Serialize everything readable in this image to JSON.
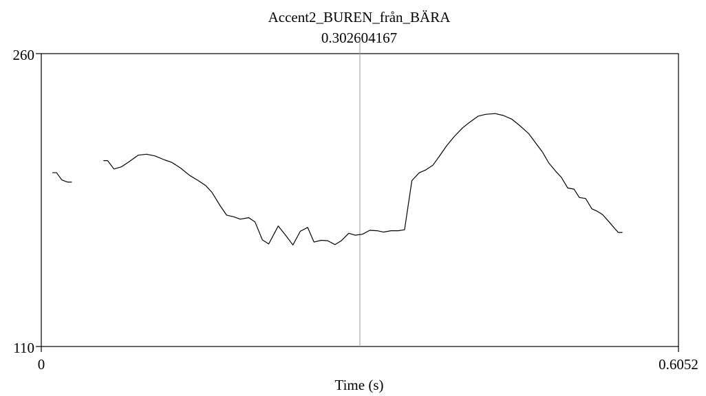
{
  "chart_data": {
    "type": "line",
    "title": "Accent2_BUREN_från_BÄRA",
    "cursor_label": "0.302604167",
    "cursor_x": 0.302604167,
    "xlabel": "Time (s)",
    "ylabel": "",
    "xlim": [
      0,
      0.6052
    ],
    "ylim": [
      110,
      260
    ],
    "x_tick_labels": [
      "0",
      "0.6052"
    ],
    "y_tick_labels": [
      "110",
      "260"
    ],
    "grid": false,
    "series": [
      {
        "segments": [
          [
            [
              0.0105,
              199.0
            ],
            [
              0.0145,
              199.0
            ],
            [
              0.0195,
              195.3
            ],
            [
              0.025,
              194.2
            ],
            [
              0.029,
              194.2
            ]
          ],
          [
            [
              0.059,
              205.2
            ],
            [
              0.063,
              205.2
            ],
            [
              0.069,
              200.9
            ],
            [
              0.076,
              202.0
            ],
            [
              0.083,
              204.5
            ],
            [
              0.092,
              208.0
            ],
            [
              0.1,
              208.5
            ],
            [
              0.108,
              207.6
            ],
            [
              0.117,
              205.6
            ],
            [
              0.124,
              204.3
            ],
            [
              0.132,
              201.5
            ],
            [
              0.141,
              197.6
            ],
            [
              0.149,
              195.0
            ],
            [
              0.156,
              192.5
            ],
            [
              0.162,
              189.0
            ],
            [
              0.17,
              182.0
            ],
            [
              0.176,
              177.3
            ],
            [
              0.183,
              176.4
            ],
            [
              0.189,
              175.2
            ],
            [
              0.197,
              176.0
            ],
            [
              0.203,
              173.8
            ],
            [
              0.21,
              164.6
            ],
            [
              0.216,
              162.5
            ],
            [
              0.225,
              171.7
            ],
            [
              0.232,
              167.0
            ],
            [
              0.239,
              162.0
            ],
            [
              0.246,
              169.0
            ],
            [
              0.253,
              171.0
            ],
            [
              0.259,
              163.5
            ],
            [
              0.266,
              164.4
            ],
            [
              0.272,
              164.2
            ],
            [
              0.279,
              162.2
            ],
            [
              0.285,
              164.2
            ],
            [
              0.292,
              168.0
            ],
            [
              0.298,
              167.0
            ],
            [
              0.305,
              167.5
            ],
            [
              0.312,
              169.5
            ],
            [
              0.319,
              169.3
            ],
            [
              0.325,
              168.6
            ],
            [
              0.332,
              169.3
            ],
            [
              0.339,
              169.3
            ],
            [
              0.345,
              169.8
            ],
            [
              0.352,
              195.0
            ],
            [
              0.359,
              199.0
            ],
            [
              0.365,
              200.4
            ],
            [
              0.372,
              202.9
            ],
            [
              0.378,
              207.4
            ],
            [
              0.385,
              212.8
            ],
            [
              0.392,
              217.4
            ],
            [
              0.4,
              221.9
            ],
            [
              0.407,
              224.9
            ],
            [
              0.415,
              228.0
            ],
            [
              0.422,
              228.9
            ],
            [
              0.431,
              229.3
            ],
            [
              0.439,
              228.3
            ],
            [
              0.447,
              226.4
            ],
            [
              0.455,
              222.9
            ],
            [
              0.463,
              219.0
            ],
            [
              0.47,
              213.9
            ],
            [
              0.476,
              209.6
            ],
            [
              0.482,
              204.0
            ],
            [
              0.489,
              199.5
            ],
            [
              0.494,
              196.6
            ],
            [
              0.5,
              191.2
            ],
            [
              0.506,
              190.6
            ],
            [
              0.511,
              186.3
            ],
            [
              0.517,
              185.8
            ],
            [
              0.523,
              180.5
            ],
            [
              0.528,
              179.3
            ],
            [
              0.533,
              177.6
            ],
            [
              0.539,
              174.0
            ],
            [
              0.544,
              170.8
            ],
            [
              0.548,
              168.4
            ],
            [
              0.552,
              168.4
            ]
          ]
        ]
      }
    ]
  }
}
